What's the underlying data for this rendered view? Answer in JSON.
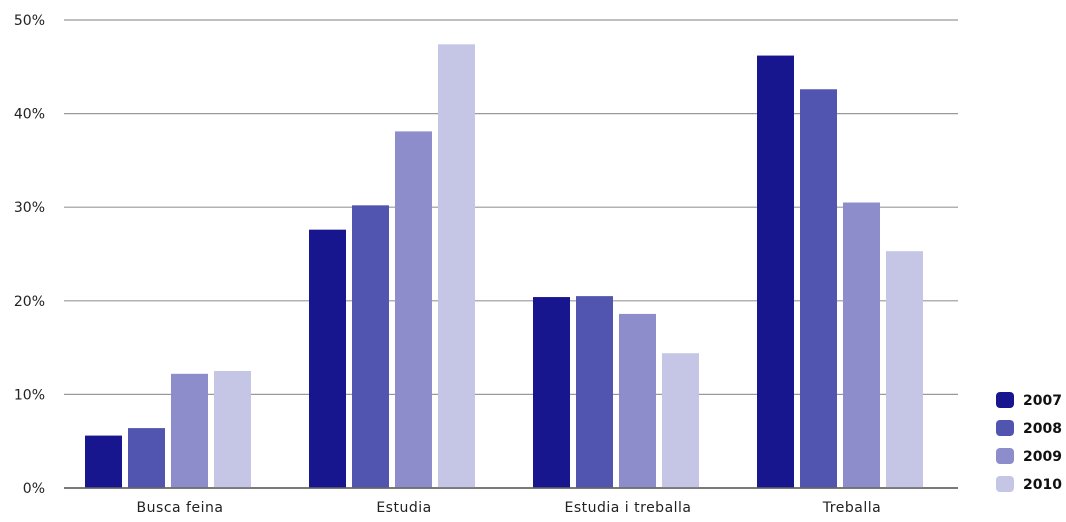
{
  "chart_data": {
    "type": "bar",
    "categories": [
      "Busca feina",
      "Estudia",
      "Estudia i treballa",
      "Treballa"
    ],
    "series": [
      {
        "name": "2007",
        "color": "#18168f",
        "values": [
          5.6,
          27.6,
          20.4,
          46.2
        ]
      },
      {
        "name": "2008",
        "color": "#5255b0",
        "values": [
          6.4,
          30.2,
          20.5,
          42.6
        ]
      },
      {
        "name": "2009",
        "color": "#8e8dcb",
        "values": [
          12.2,
          38.1,
          18.6,
          30.5
        ]
      },
      {
        "name": "2010",
        "color": "#c5c6e5",
        "values": [
          12.5,
          47.4,
          14.4,
          25.3
        ]
      }
    ],
    "ylim": [
      0,
      50
    ],
    "yticks": [
      "0%",
      "10%",
      "20%",
      "30%",
      "40%",
      "50%"
    ],
    "ytick_values": [
      0,
      10,
      20,
      30,
      40,
      50
    ],
    "grid": true,
    "legend_position": "bottom-right",
    "title": "",
    "xlabel": "",
    "ylabel": ""
  }
}
